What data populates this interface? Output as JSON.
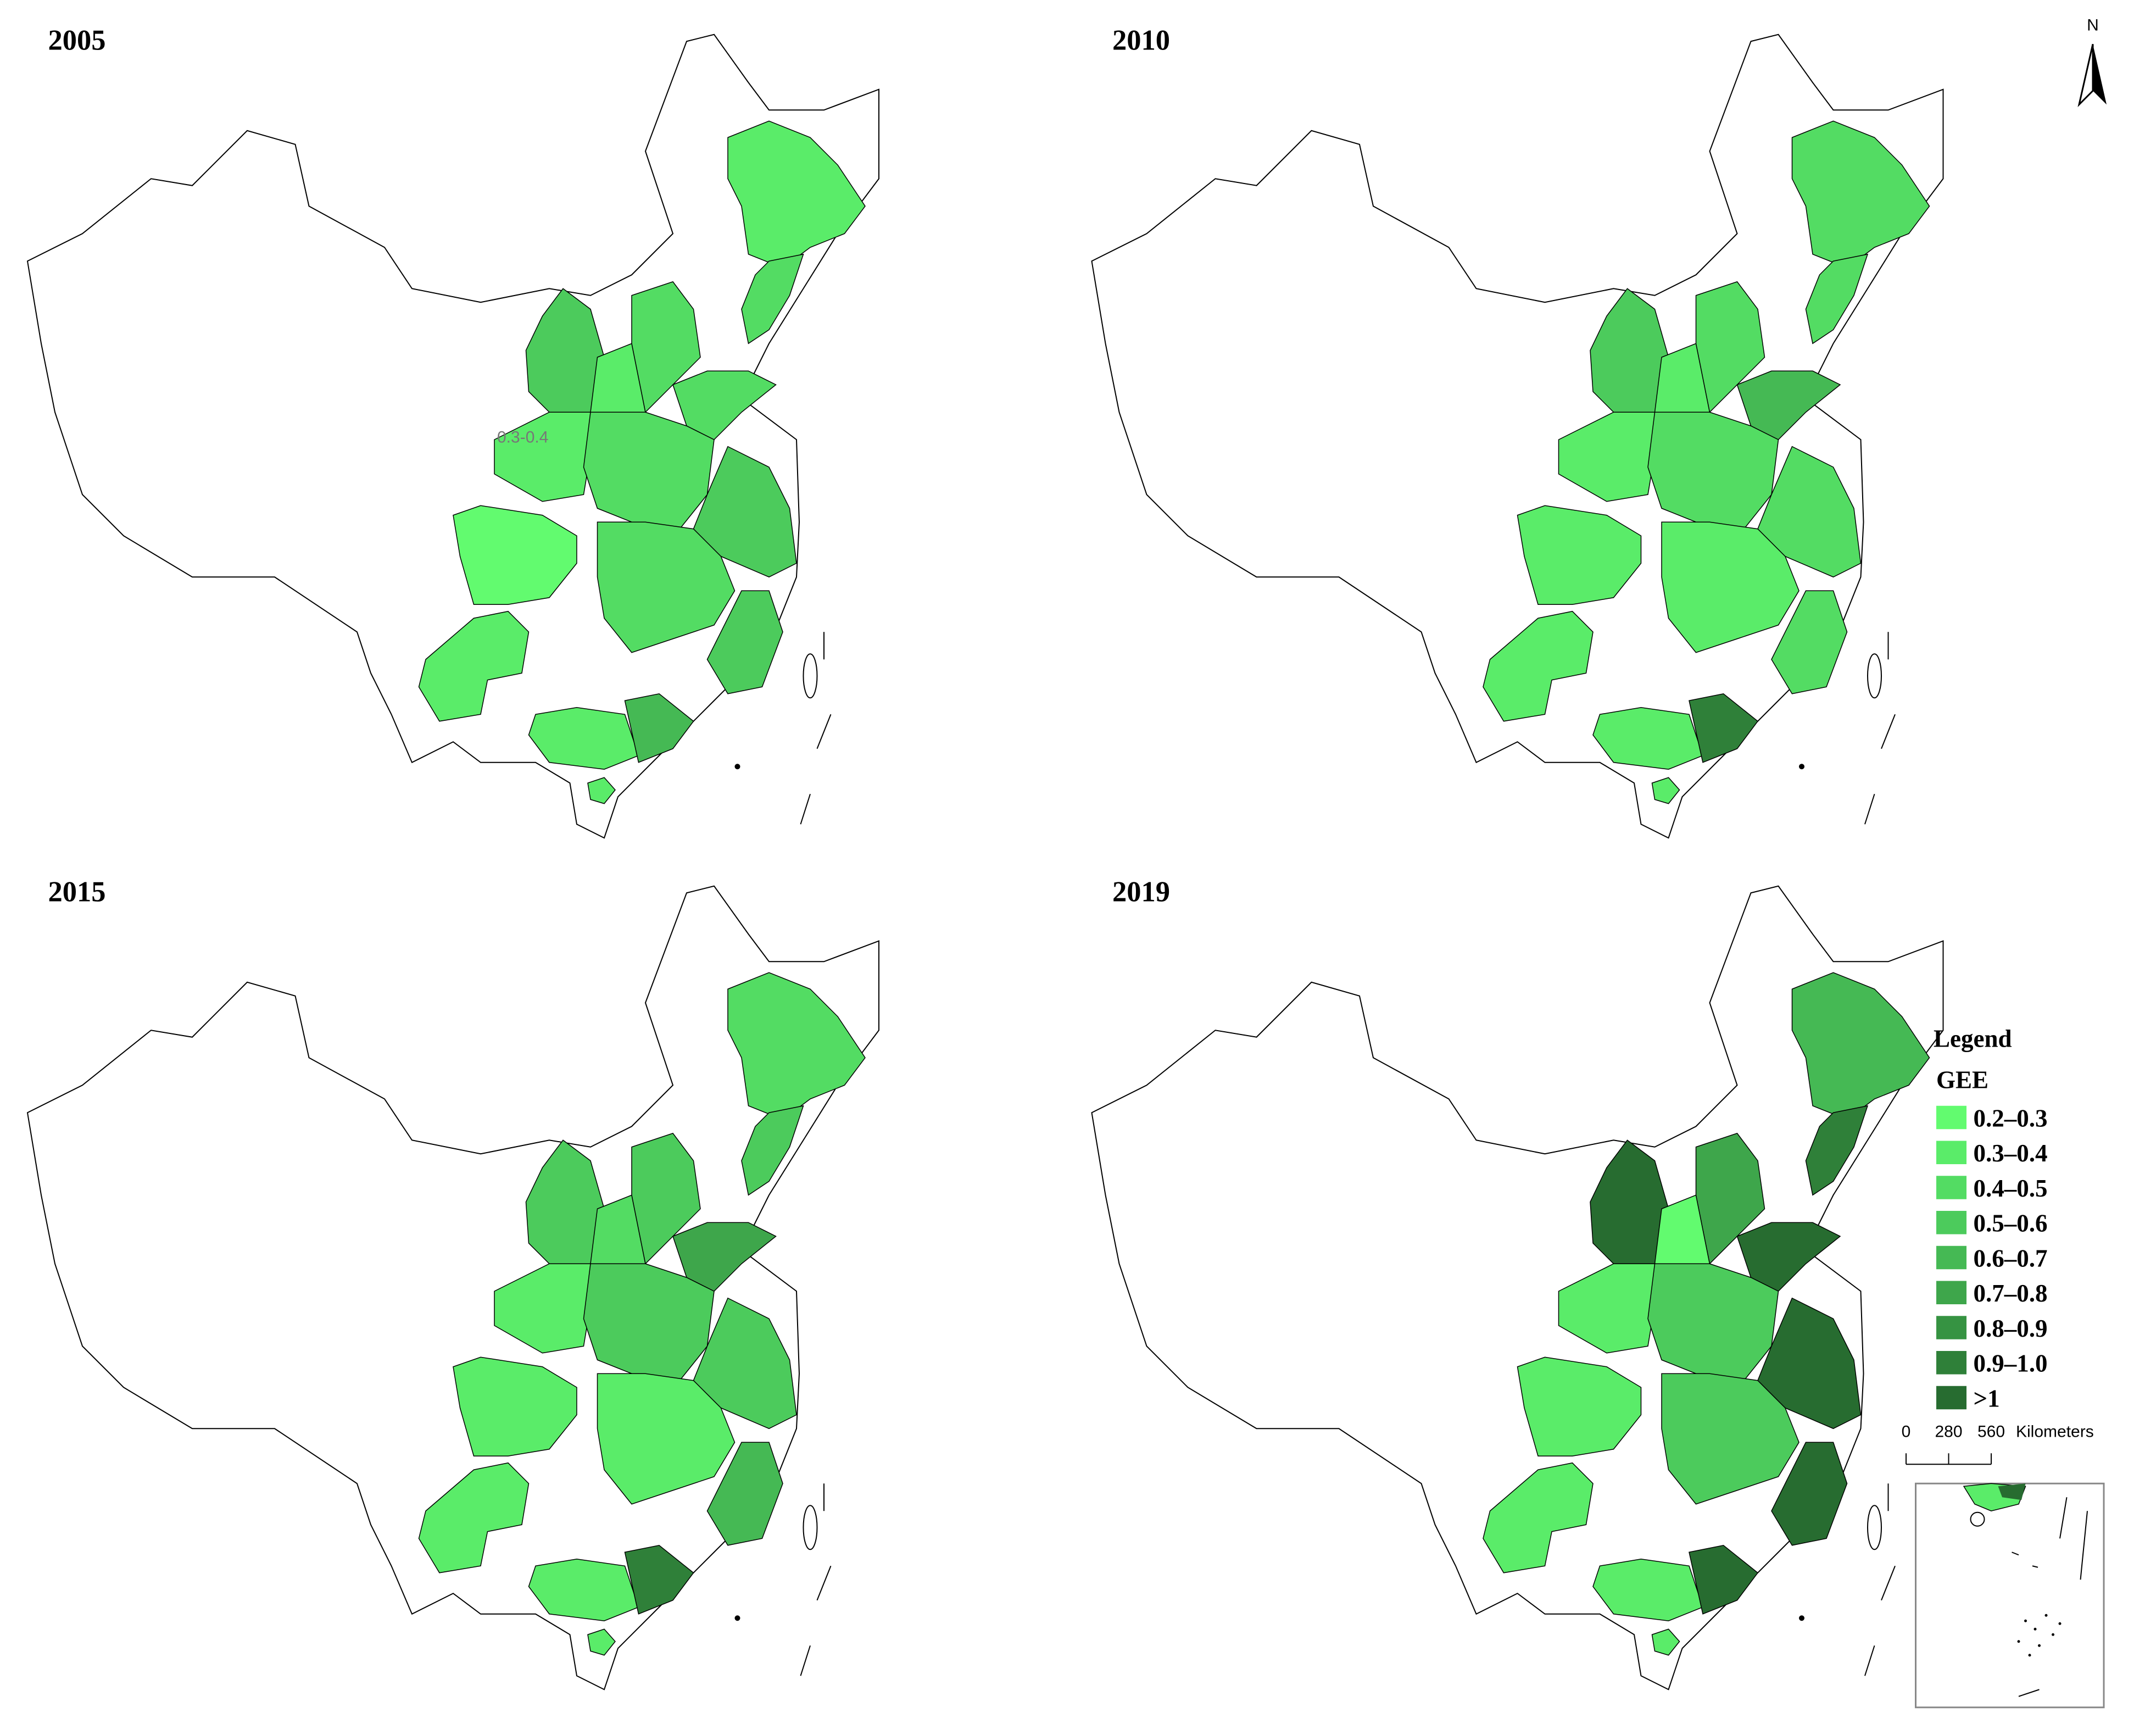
{
  "maps": [
    {
      "title": "2005",
      "label": "0.3-0.4",
      "values": [
        0.35,
        0.45,
        0.55,
        0.35,
        0.45,
        0.45,
        0.35,
        0.45,
        0.55,
        0.25,
        0.45,
        0.35,
        0.55,
        0.35,
        0.65,
        0.35
      ]
    },
    {
      "title": "2010",
      "values": [
        0.45,
        0.45,
        0.55,
        0.35,
        0.45,
        0.65,
        0.35,
        0.45,
        0.45,
        0.35,
        0.35,
        0.35,
        0.45,
        0.35,
        0.95,
        0.35
      ]
    },
    {
      "title": "2015",
      "values": [
        0.45,
        0.55,
        0.55,
        0.45,
        0.55,
        0.75,
        0.35,
        0.55,
        0.55,
        0.35,
        0.35,
        0.35,
        0.65,
        0.35,
        0.95,
        0.35
      ]
    },
    {
      "title": "2019",
      "values": [
        0.65,
        0.95,
        1.1,
        0.25,
        0.75,
        1.1,
        0.35,
        0.55,
        1.1,
        0.35,
        0.55,
        0.35,
        1.1,
        0.35,
        1.05,
        0.35
      ]
    }
  ],
  "legend": {
    "title": "Legend",
    "subtitle": "GEE",
    "classes": [
      {
        "label": "0.2–0.3",
        "min": 0.2,
        "max": 0.3,
        "color": "#62fb6f"
      },
      {
        "label": "0.3–0.4",
        "min": 0.3,
        "max": 0.4,
        "color": "#5aec69"
      },
      {
        "label": "0.4–0.5",
        "min": 0.4,
        "max": 0.5,
        "color": "#53dc63"
      },
      {
        "label": "0.5–0.6",
        "min": 0.5,
        "max": 0.6,
        "color": "#4ccb5c"
      },
      {
        "label": "0.6–0.7",
        "min": 0.6,
        "max": 0.7,
        "color": "#45b954"
      },
      {
        "label": "0.7–0.8",
        "min": 0.7,
        "max": 0.8,
        "color": "#3ea64b"
      },
      {
        "label": "0.8–0.9",
        "min": 0.8,
        "max": 0.9,
        "color": "#369342"
      },
      {
        "label": "0.9–1.0",
        "min": 0.9,
        "max": 1.0,
        "color": "#2f8039"
      },
      {
        "label": ">1",
        "min": 1,
        "color": "#276c30"
      }
    ]
  },
  "scale_bar": {
    "ticks": [
      0,
      280,
      560
    ],
    "unit": "Kilometers"
  },
  "north": "N"
}
